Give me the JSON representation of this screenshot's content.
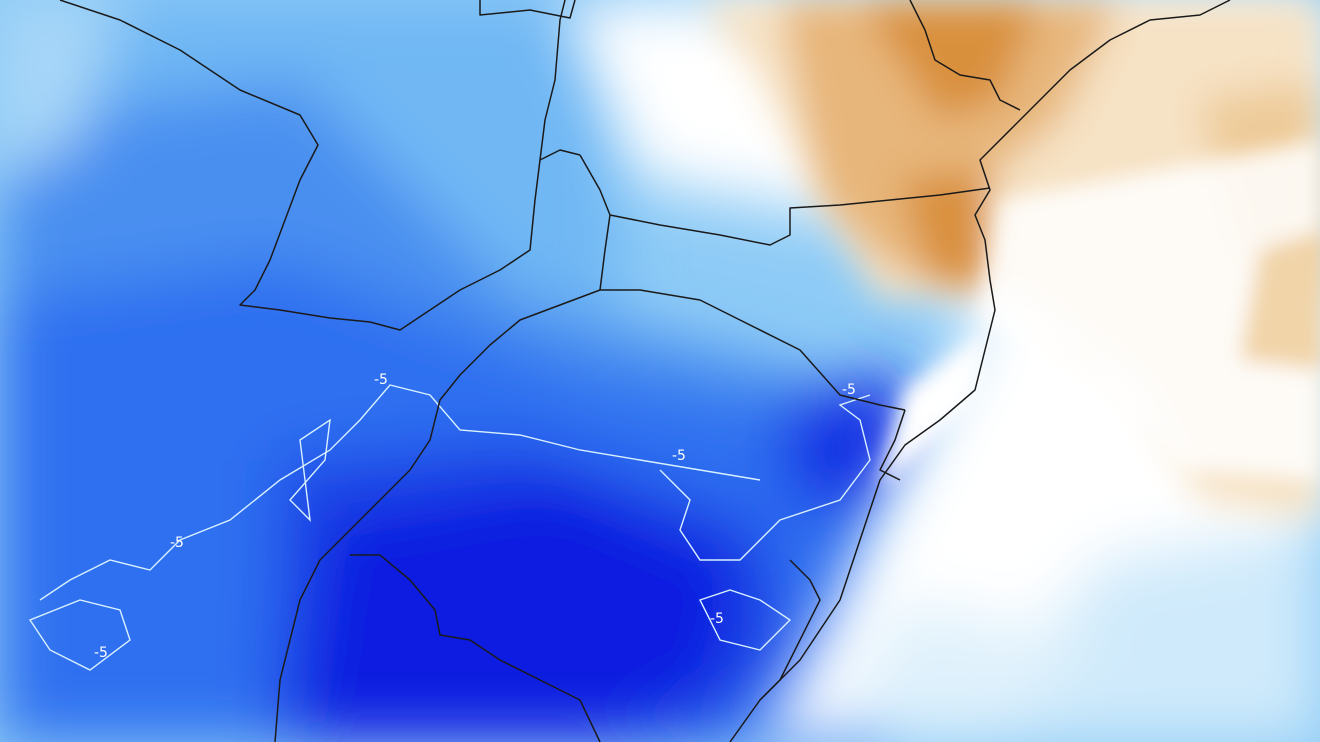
{
  "map": {
    "description_colors": {
      "deep_blue": "#0a1fe0",
      "mid_blue": "#2f6ff0",
      "light_blue": "#6fb7f4",
      "pale_blue": "#bfe3fb",
      "neutral": "#ffffff",
      "pale_orange": "#f6e2c4",
      "orange": "#e7b67a",
      "dark_orange": "#d9903c",
      "border": "#1a1a1a",
      "contour": "#d8f0ff"
    },
    "contour_labels": [
      "-5",
      "-5",
      "-5",
      "-5",
      "-5",
      "-5"
    ]
  }
}
